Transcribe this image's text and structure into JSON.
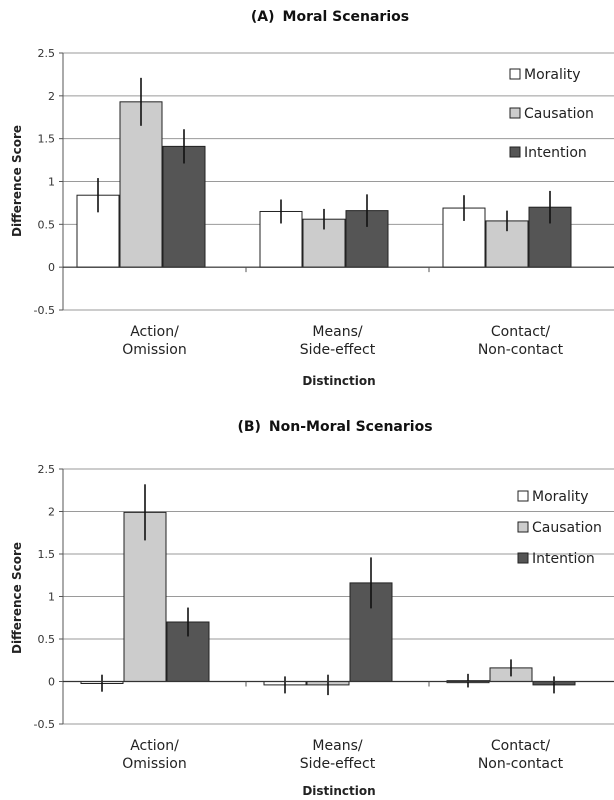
{
  "chart_data": [
    {
      "type": "bar",
      "panel_label": "(A)",
      "title": "Moral Scenarios",
      "xlabel": "Distinction",
      "ylabel": "Difference Score",
      "ylim": [
        -0.5,
        2.5
      ],
      "yticks": [
        "-0.5",
        "0",
        "0.5",
        "1",
        "1.5",
        "2",
        "2.5"
      ],
      "categories": [
        [
          "Action/",
          "Omission"
        ],
        [
          "Means/",
          "Side-effect"
        ],
        [
          "Contact/",
          "Non-contact"
        ]
      ],
      "grid": true,
      "legend_position": "top-right",
      "series": [
        {
          "name": "Morality",
          "color": "#ffffff",
          "values": [
            0.84,
            0.65,
            0.69
          ],
          "errors": [
            0.2,
            0.14,
            0.15
          ]
        },
        {
          "name": "Causation",
          "color": "#cccccc",
          "values": [
            1.93,
            0.56,
            0.54
          ],
          "errors": [
            0.28,
            0.12,
            0.12
          ]
        },
        {
          "name": "Intention",
          "color": "#555555",
          "values": [
            1.41,
            0.66,
            0.7
          ],
          "errors": [
            0.2,
            0.19,
            0.19
          ]
        }
      ]
    },
    {
      "type": "bar",
      "panel_label": "(B)",
      "title": "Non-Moral Scenarios",
      "xlabel": "Distinction",
      "ylabel": "Difference Score",
      "ylim": [
        -0.5,
        2.5
      ],
      "yticks": [
        "-0.5",
        "0",
        "0.5",
        "1",
        "1.5",
        "2",
        "2.5"
      ],
      "categories": [
        [
          "Action/",
          "Omission"
        ],
        [
          "Means/",
          "Side-effect"
        ],
        [
          "Contact/",
          "Non-contact"
        ]
      ],
      "grid": true,
      "legend_position": "top-right",
      "series": [
        {
          "name": "Morality",
          "color": "#ffffff",
          "values": [
            -0.02,
            -0.04,
            0.01
          ],
          "errors": [
            0.1,
            0.1,
            0.08
          ]
        },
        {
          "name": "Causation",
          "color": "#cccccc",
          "values": [
            1.99,
            -0.04,
            0.16
          ],
          "errors": [
            0.33,
            0.12,
            0.1
          ]
        },
        {
          "name": "Intention",
          "color": "#555555",
          "values": [
            0.7,
            1.16,
            -0.04
          ],
          "errors": [
            0.17,
            0.3,
            0.1
          ]
        }
      ]
    }
  ]
}
